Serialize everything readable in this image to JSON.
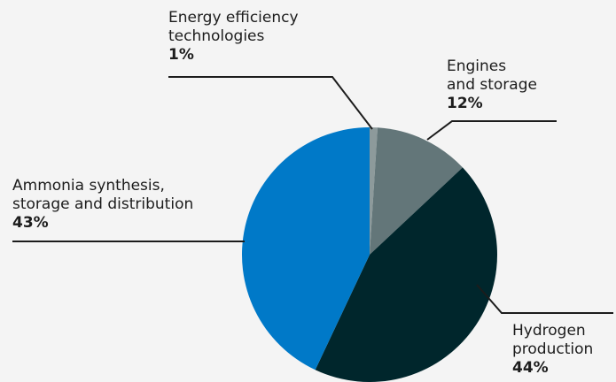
{
  "chart_data": {
    "type": "pie",
    "start_angle_deg": 0,
    "direction": "clockwise",
    "slices": [
      {
        "label": "Energy efficiency\ntechnologies",
        "value": 1,
        "value_label": "1%",
        "color": "#8d9a9b"
      },
      {
        "label": "Engines\nand storage",
        "value": 12,
        "value_label": "12%",
        "color": "#637679"
      },
      {
        "label": "Hydrogen\nproduction",
        "value": 44,
        "value_label": "44%",
        "color": "#00262c"
      },
      {
        "label": "Ammonia synthesis,\nstorage and distribution",
        "value": 43,
        "value_label": "43%",
        "color": "#0079c8"
      }
    ],
    "leader_color": "#1c1c1c"
  }
}
